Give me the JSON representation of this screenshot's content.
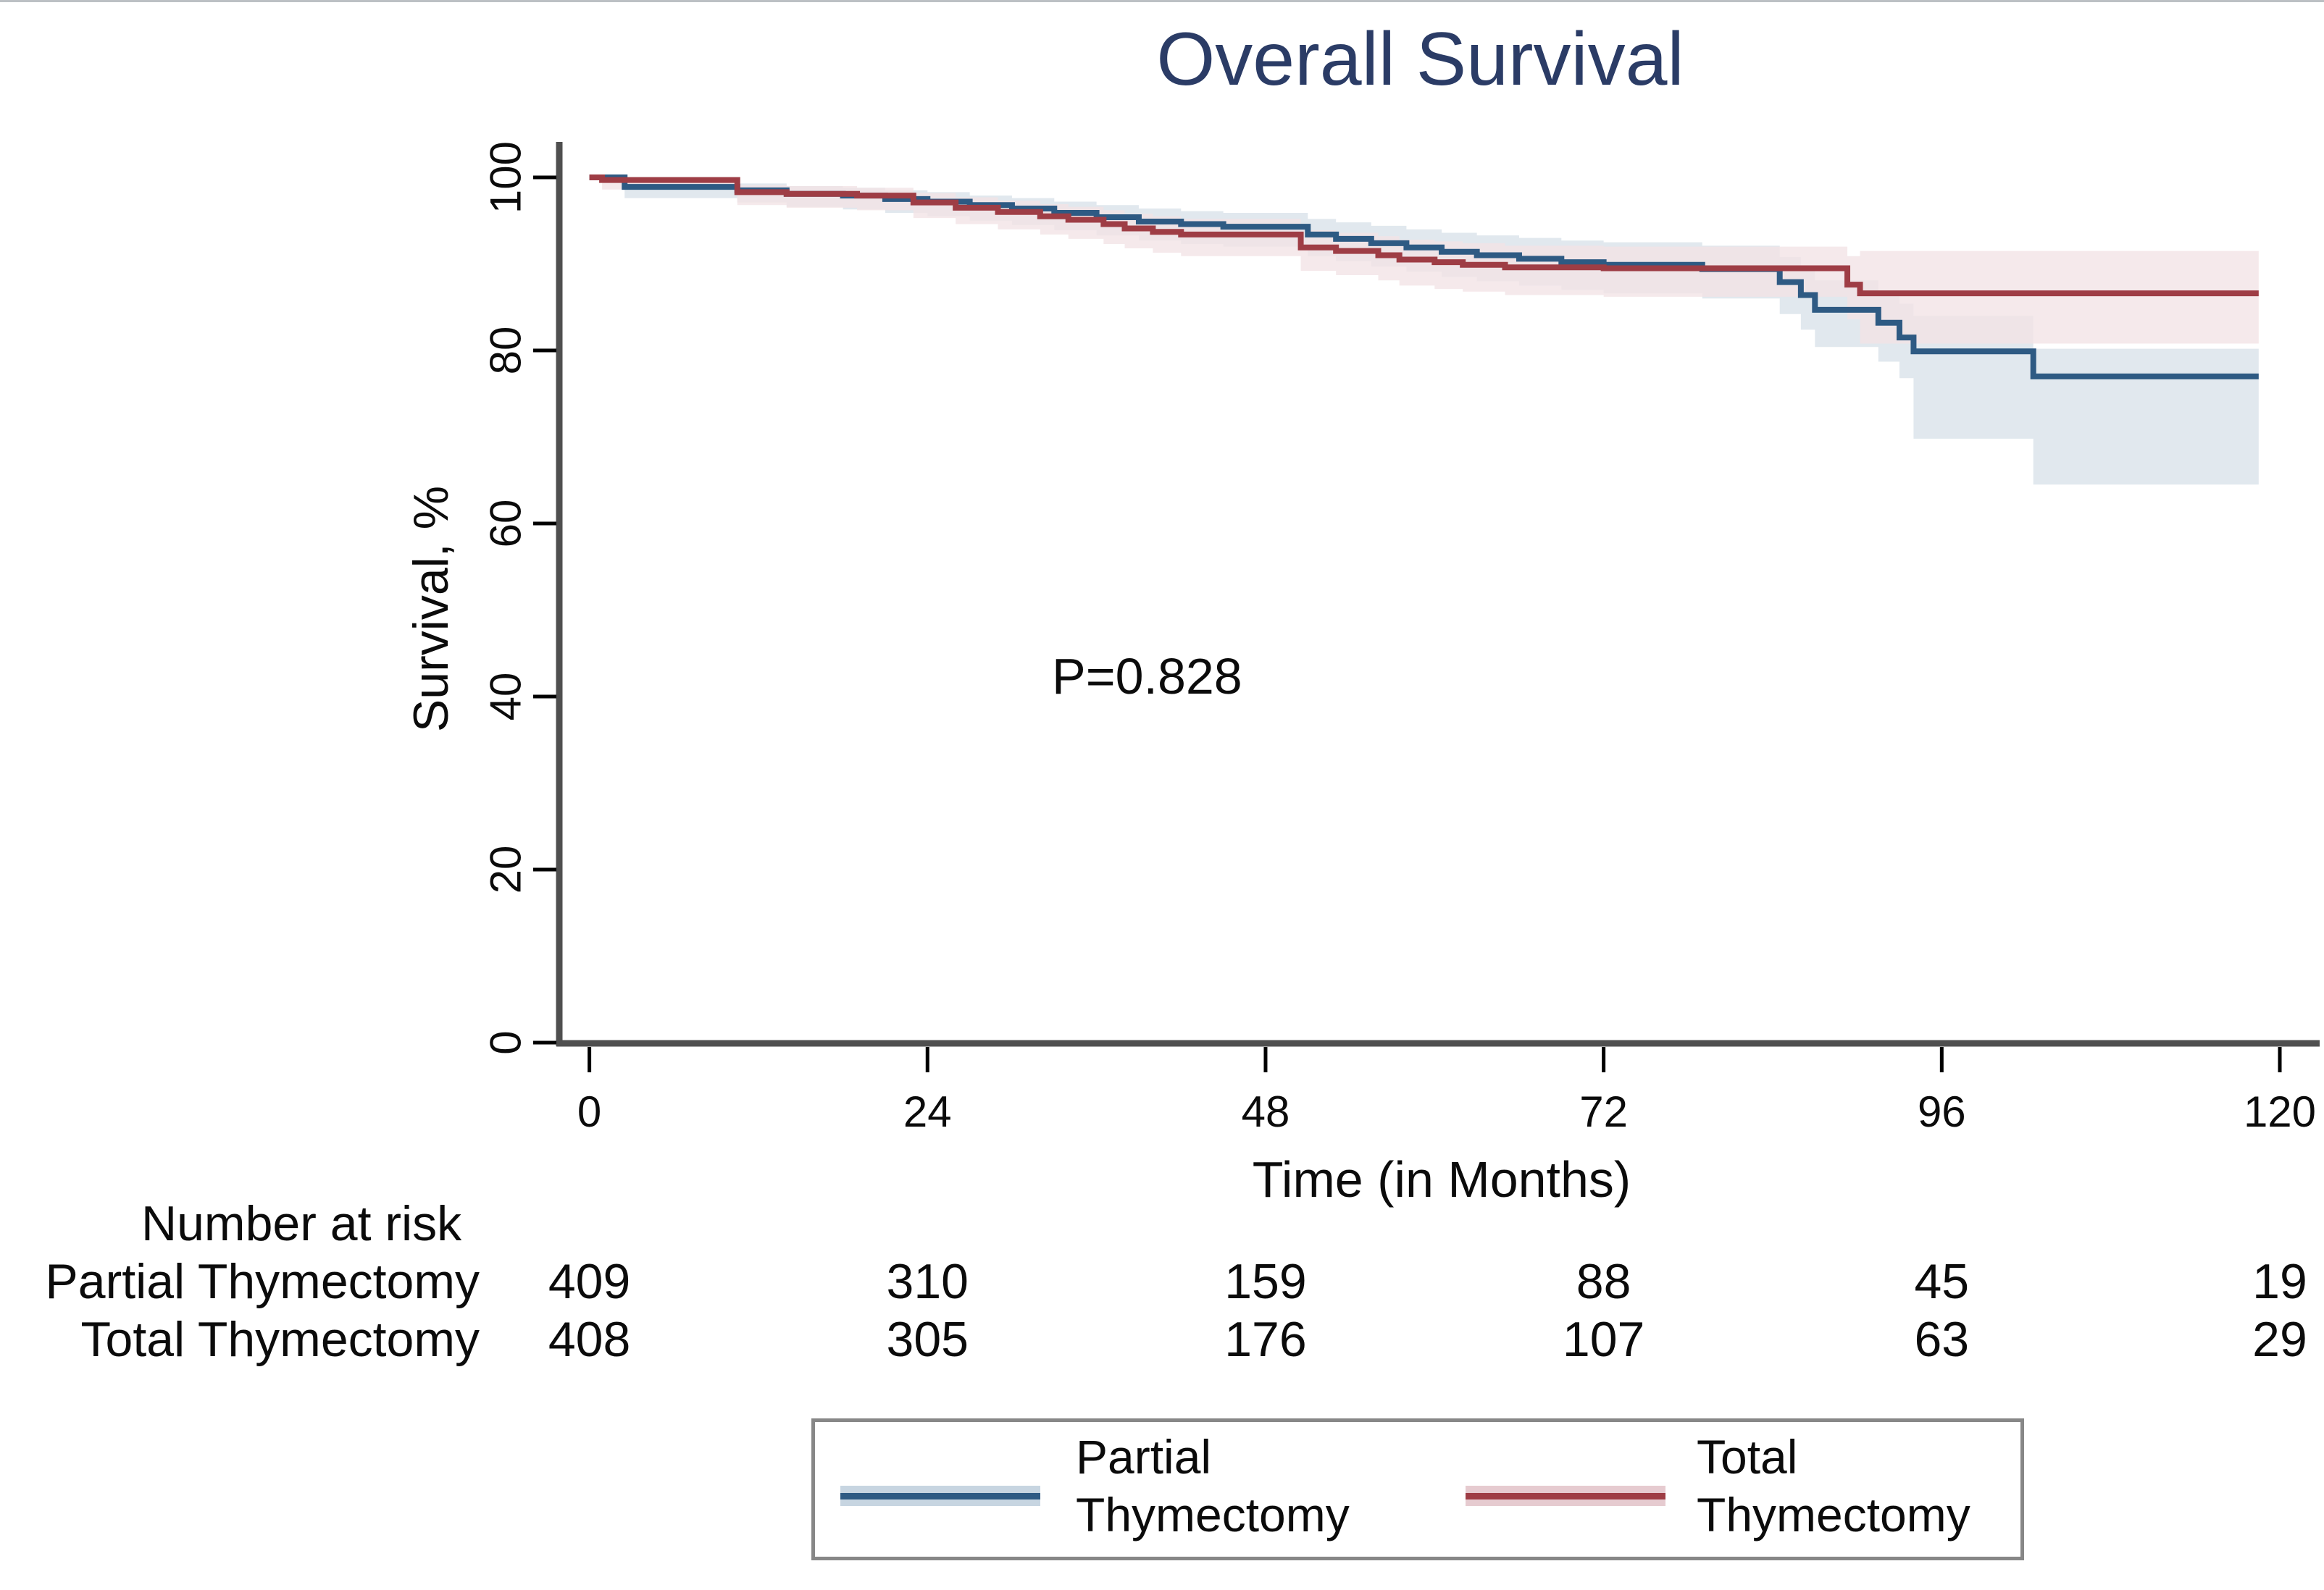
{
  "page": {
    "background": "#ffffff",
    "top_border_color": "#bcc0c4",
    "title_color": "#2b3c66",
    "axis_color": "#4f4f4f",
    "tick_color": "#000000",
    "text_color": "#0b0b0b"
  },
  "chart_data": {
    "type": "line",
    "subtype": "kaplan-meier-step",
    "title": "Overall Survival",
    "xlabel": "Time (in Months)",
    "ylabel": "Survival, %",
    "annotation": "P=0.828",
    "xlim": [
      0,
      120
    ],
    "ylim": [
      0,
      100
    ],
    "x_ticks": [
      0,
      24,
      48,
      72,
      96,
      120
    ],
    "y_ticks": [
      0,
      20,
      40,
      60,
      80,
      100
    ],
    "grid": "off",
    "legend_position": "bottom",
    "end_time": 118.5,
    "series": [
      {
        "name": "Partial Thymectomy",
        "color": "#2e5a83",
        "band_color": "#dce4eb",
        "band_opacity": 0.85,
        "halo_color": "#c7d5e1",
        "steps_format": [
          "time_months",
          "survival_pct",
          "ci_low",
          "ci_high"
        ],
        "steps": [
          [
            0,
            100,
            100,
            100
          ],
          [
            2.5,
            98.9,
            97.6,
            99.6
          ],
          [
            10.5,
            98.5,
            97.1,
            99.3
          ],
          [
            14,
            98.1,
            96.6,
            99.0
          ],
          [
            18,
            97.9,
            96.3,
            98.8
          ],
          [
            21,
            97.5,
            95.9,
            98.5
          ],
          [
            24,
            97.2,
            95.5,
            98.3
          ],
          [
            27,
            96.8,
            95.0,
            97.9
          ],
          [
            30,
            96.4,
            94.5,
            97.6
          ],
          [
            33,
            95.9,
            93.9,
            97.2
          ],
          [
            36,
            95.4,
            93.3,
            96.8
          ],
          [
            39,
            94.9,
            92.7,
            96.4
          ],
          [
            42,
            94.6,
            92.3,
            96.1
          ],
          [
            45,
            94.3,
            92.0,
            95.9
          ],
          [
            51,
            93.4,
            90.9,
            95.2
          ],
          [
            53,
            92.9,
            90.3,
            94.8
          ],
          [
            55.5,
            92.4,
            89.7,
            94.4
          ],
          [
            58,
            91.9,
            89.1,
            94.0
          ],
          [
            60.5,
            91.4,
            88.5,
            93.6
          ],
          [
            63,
            91.0,
            88.0,
            93.3
          ],
          [
            66,
            90.6,
            87.5,
            93.0
          ],
          [
            69,
            90.2,
            87.0,
            92.7
          ],
          [
            72,
            89.9,
            86.6,
            92.5
          ],
          [
            79,
            89.4,
            86.0,
            92.1
          ],
          [
            84.5,
            87.9,
            84.2,
            90.8
          ],
          [
            86,
            86.4,
            82.4,
            89.6
          ],
          [
            87,
            84.7,
            80.4,
            88.1
          ],
          [
            91.5,
            83.2,
            78.7,
            86.8
          ],
          [
            93,
            81.5,
            76.8,
            85.4
          ],
          [
            94,
            79.9,
            69.8,
            84.0
          ],
          [
            102.5,
            77.0,
            64.5,
            80.2
          ]
        ]
      },
      {
        "name": "Total Thymectomy",
        "color": "#9e3d45",
        "band_color": "#f2e3e5",
        "band_opacity": 0.78,
        "halo_color": "#e6cbd0",
        "steps_format": [
          "time_months",
          "survival_pct",
          "ci_low",
          "ci_high"
        ],
        "steps": [
          [
            0,
            100,
            100,
            100
          ],
          [
            0.9,
            99.7,
            98.6,
            99.9
          ],
          [
            10.5,
            98.3,
            96.8,
            99.1
          ],
          [
            14,
            98.1,
            96.5,
            99.0
          ],
          [
            19,
            97.9,
            96.2,
            98.8
          ],
          [
            23,
            97.1,
            95.3,
            98.2
          ],
          [
            26,
            96.5,
            94.6,
            97.7
          ],
          [
            29,
            96.0,
            94.0,
            97.3
          ],
          [
            32,
            95.5,
            93.4,
            96.9
          ],
          [
            34,
            95.1,
            92.9,
            96.6
          ],
          [
            36.5,
            94.6,
            92.3,
            96.2
          ],
          [
            38,
            94.1,
            91.8,
            95.8
          ],
          [
            40,
            93.7,
            91.3,
            95.5
          ],
          [
            42,
            93.4,
            90.9,
            95.2
          ],
          [
            50.5,
            91.9,
            89.2,
            93.9
          ],
          [
            53,
            91.5,
            88.7,
            93.6
          ],
          [
            56,
            91.0,
            88.1,
            93.2
          ],
          [
            57.5,
            90.5,
            87.5,
            92.8
          ],
          [
            60,
            90.2,
            87.1,
            92.6
          ],
          [
            62,
            89.9,
            86.8,
            92.4
          ],
          [
            65,
            89.6,
            86.4,
            92.1
          ],
          [
            72,
            89.5,
            86.2,
            92.0
          ],
          [
            89.3,
            87.6,
            83.6,
            90.9
          ],
          [
            90.2,
            86.6,
            80.8,
            91.5
          ]
        ]
      }
    ],
    "risk_table": {
      "title": "Number at risk",
      "times": [
        0,
        24,
        48,
        72,
        96,
        120
      ],
      "rows": [
        {
          "label": "Partial Thymectomy",
          "values": [
            "409",
            "310",
            "159",
            "88",
            "45",
            "19"
          ]
        },
        {
          "label": "Total Thymectomy",
          "values": [
            "408",
            "305",
            "176",
            "107",
            "63",
            "29"
          ]
        }
      ]
    },
    "legend": {
      "entries": [
        {
          "label": "Partial\nThymectomy"
        },
        {
          "label": "Total\nThymectomy"
        }
      ]
    }
  }
}
